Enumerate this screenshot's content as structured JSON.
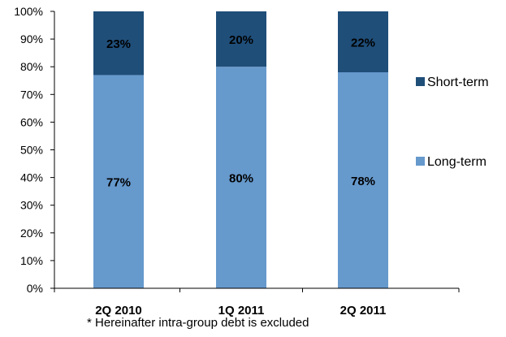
{
  "chart_data": {
    "type": "bar",
    "stacked": true,
    "categories": [
      "2Q 2010",
      "1Q 2011",
      "2Q 2011"
    ],
    "series": [
      {
        "name": "Long-term",
        "values": [
          77,
          80,
          78
        ],
        "color": "#6699cc",
        "labels": [
          "77%",
          "80%",
          "78%"
        ]
      },
      {
        "name": "Short-term",
        "values": [
          23,
          20,
          22
        ],
        "color": "#1f4e79",
        "labels": [
          "23%",
          "20%",
          "22%"
        ]
      }
    ],
    "yticks": [
      "0%",
      "10%",
      "20%",
      "30%",
      "40%",
      "50%",
      "60%",
      "70%",
      "80%",
      "90%",
      "100%"
    ],
    "ylim": [
      0,
      100
    ],
    "grid": false,
    "legend": {
      "position": "right",
      "order": [
        "Short-term",
        "Long-term"
      ]
    },
    "title": "",
    "xlabel": "",
    "ylabel": ""
  },
  "footnote": "* Hereinafter intra-group debt is excluded"
}
